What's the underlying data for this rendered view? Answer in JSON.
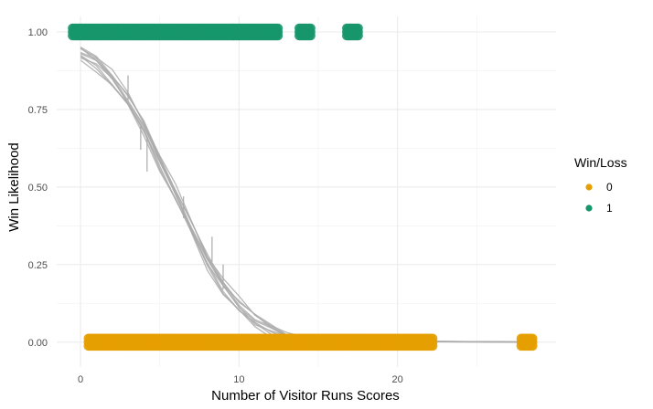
{
  "chart_data": {
    "type": "scatter",
    "xlabel": "Number of Visitor Runs Scores",
    "ylabel": "Win Likelihood",
    "xlim": [
      -1.5,
      30
    ],
    "ylim": [
      -0.08,
      1.05
    ],
    "x_ticks": [
      0,
      10,
      20
    ],
    "x_tick_labels": [
      "0",
      "10",
      "20"
    ],
    "y_ticks": [
      0,
      0.25,
      0.5,
      0.75,
      1.0
    ],
    "y_tick_labels": [
      "0.00",
      "0.25",
      "0.50",
      "0.75",
      "1.00"
    ],
    "grid": true,
    "legend": {
      "title": "Win/Loss",
      "position": "right",
      "entries": [
        {
          "label": "0",
          "color": "#E69F00"
        },
        {
          "label": "1",
          "color": "#16966A"
        }
      ]
    },
    "series": [
      {
        "name": "0",
        "color": "#E69F00",
        "points": [
          {
            "x_min": 0.5,
            "x_max": 22.3,
            "y": 0
          },
          {
            "x_min": 27.8,
            "x_max": 28.6,
            "y": 0
          }
        ]
      },
      {
        "name": "1",
        "color": "#16966A",
        "points": [
          {
            "x_min": -0.5,
            "x_max": 12.5,
            "y": 1
          },
          {
            "x_min": 13.8,
            "x_max": 14.6,
            "y": 1
          },
          {
            "x_min": 16.8,
            "x_max": 17.6,
            "y": 1
          }
        ]
      }
    ],
    "fit_curve": {
      "color": "#aaaaaa",
      "x": [
        0,
        1,
        2,
        3,
        4,
        5,
        6,
        7,
        8,
        9,
        10,
        11,
        12,
        13,
        14,
        16,
        18,
        20,
        22,
        24,
        26,
        28.5
      ],
      "y": [
        0.93,
        0.9,
        0.85,
        0.78,
        0.69,
        0.58,
        0.48,
        0.37,
        0.26,
        0.18,
        0.12,
        0.07,
        0.04,
        0.02,
        0.012,
        0.006,
        0.004,
        0.003,
        0.002,
        0.0015,
        0.001,
        0.0005
      ]
    }
  }
}
